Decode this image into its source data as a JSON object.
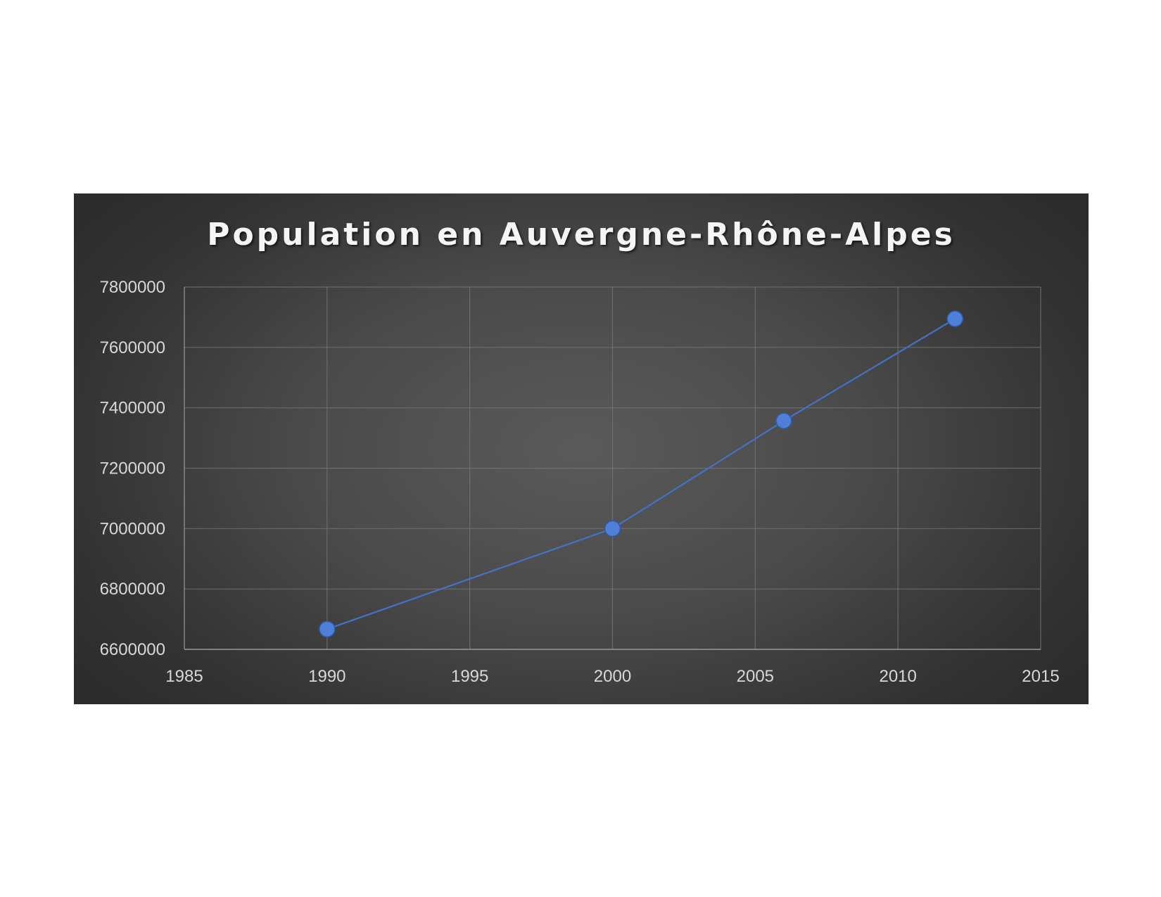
{
  "chart_data": {
    "type": "scatter",
    "title": "Population en Auvergne-Rhône-Alpes",
    "xlabel": "",
    "ylabel": "",
    "xlim": [
      1985,
      2015
    ],
    "ylim": [
      6600000,
      7800000
    ],
    "x_ticks": [
      "1985",
      "1990",
      "1995",
      "2000",
      "2005",
      "2010",
      "2015"
    ],
    "y_ticks": [
      "6600000",
      "6800000",
      "7000000",
      "7200000",
      "7400000",
      "7600000",
      "7800000"
    ],
    "series": [
      {
        "x": [
          1990,
          2000,
          2006,
          2012
        ],
        "y": [
          6667000,
          7000000,
          7357000,
          7695000
        ],
        "color": "#4472c4",
        "markers": true,
        "lines": true
      }
    ],
    "grid": true,
    "legend": "none"
  },
  "colors": {
    "background": "#3e3e3e",
    "grid": "#777777",
    "line": "#4472c4",
    "marker": "#4f7fd6",
    "title": "#f5f5f5"
  }
}
